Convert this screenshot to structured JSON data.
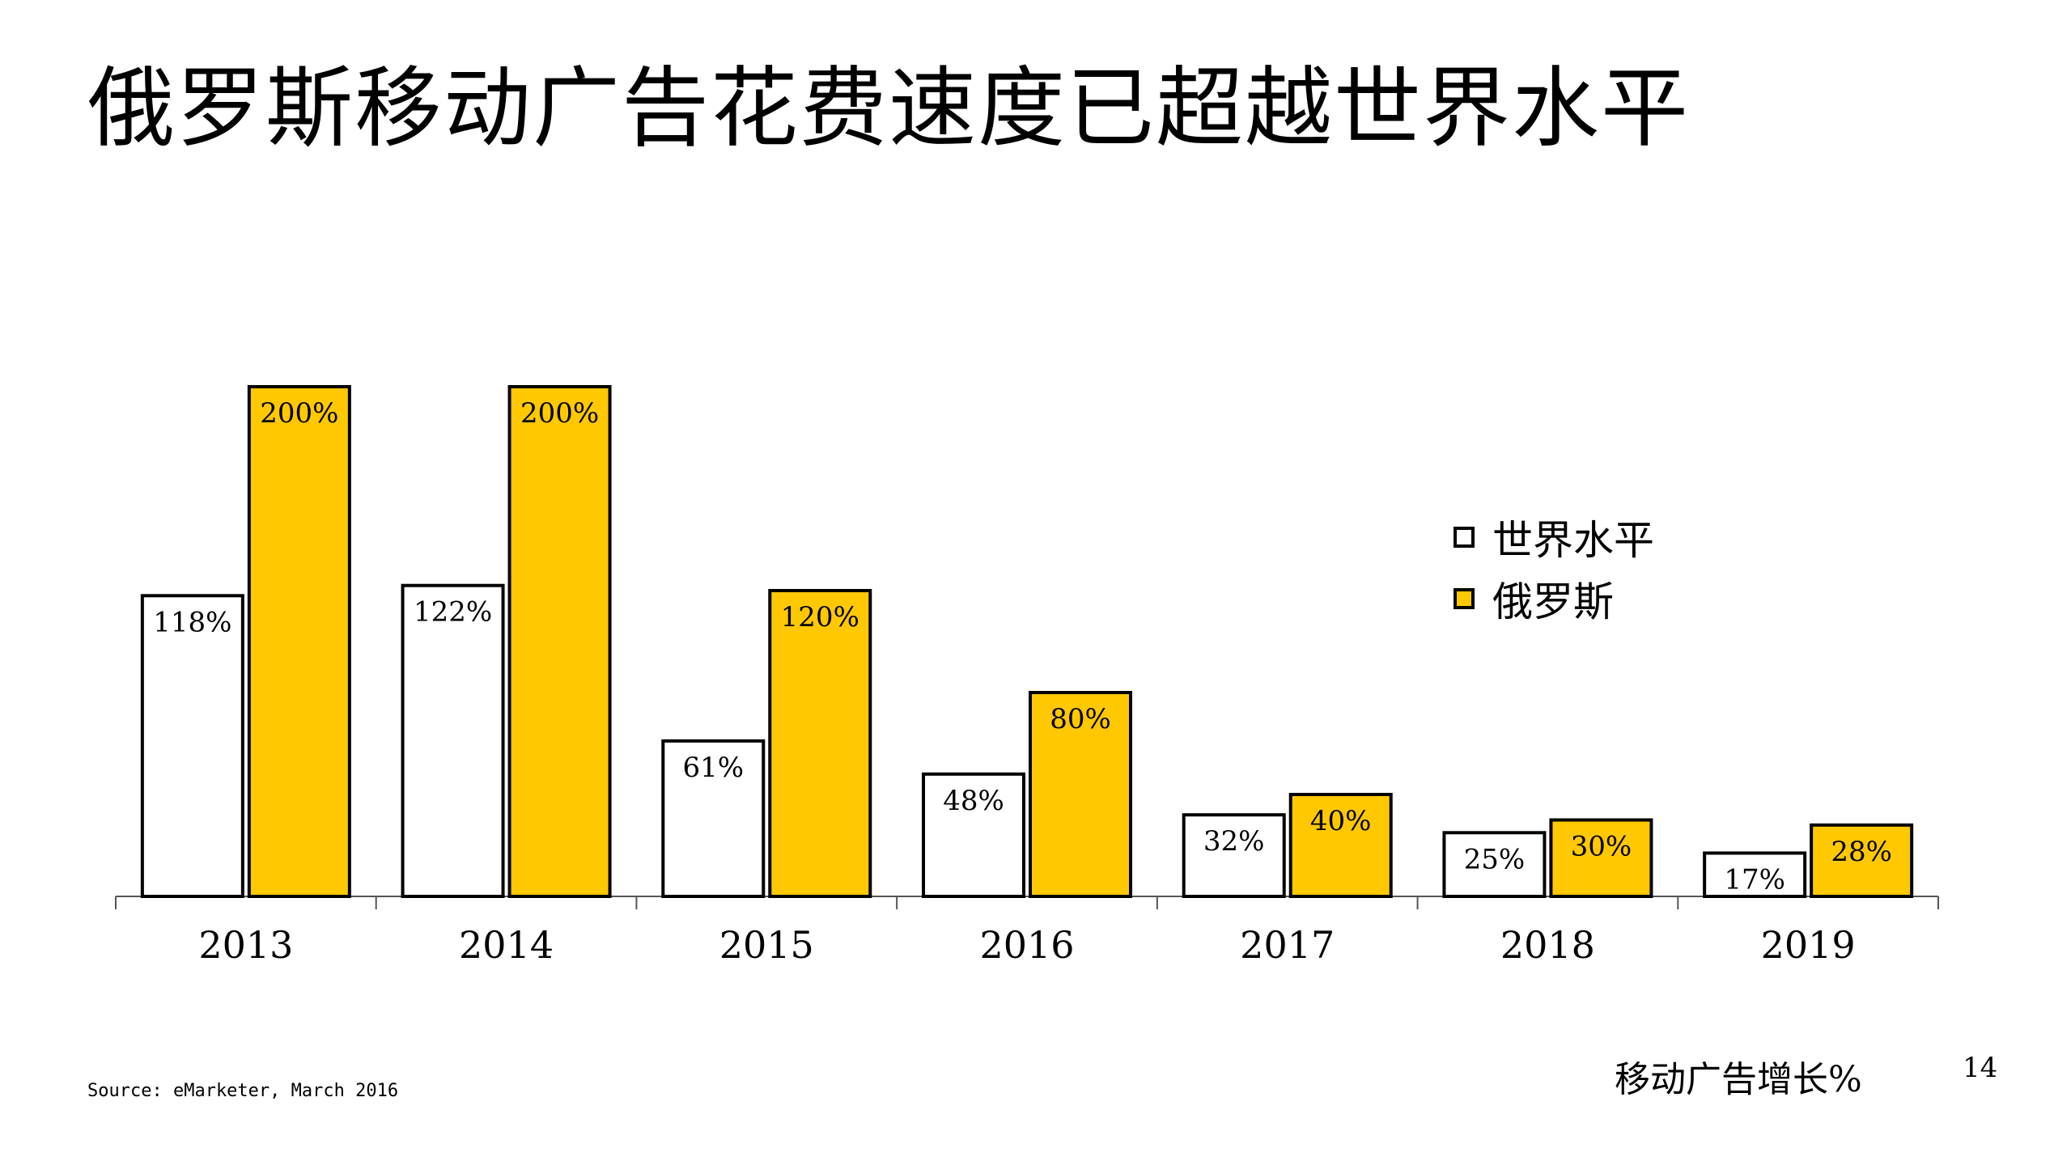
{
  "title": "俄罗斯移动广告花费速度已超越世界水平",
  "source": "Source: eMarketer, March 2016",
  "unit_label": "移动广告增长%",
  "page_number": "14",
  "colors": {
    "world": "#ffffff",
    "russia": "#ffc800",
    "outline": "#000000"
  },
  "chart_data": {
    "type": "bar",
    "categories": [
      "2013",
      "2014",
      "2015",
      "2016",
      "2017",
      "2018",
      "2019"
    ],
    "series": [
      {
        "name": "世界水平",
        "values": [
          118,
          122,
          61,
          48,
          32,
          25,
          17
        ],
        "labels": [
          "118%",
          "122%",
          "61%",
          "48%",
          "32%",
          "25%",
          "17%"
        ]
      },
      {
        "name": "俄罗斯",
        "values": [
          200,
          200,
          120,
          80,
          40,
          30,
          28
        ],
        "labels": [
          "200%",
          "200%",
          "120%",
          "80%",
          "40%",
          "30%",
          "28%"
        ]
      }
    ],
    "ylim": [
      0,
      200
    ],
    "legend": "right",
    "grid": false
  }
}
